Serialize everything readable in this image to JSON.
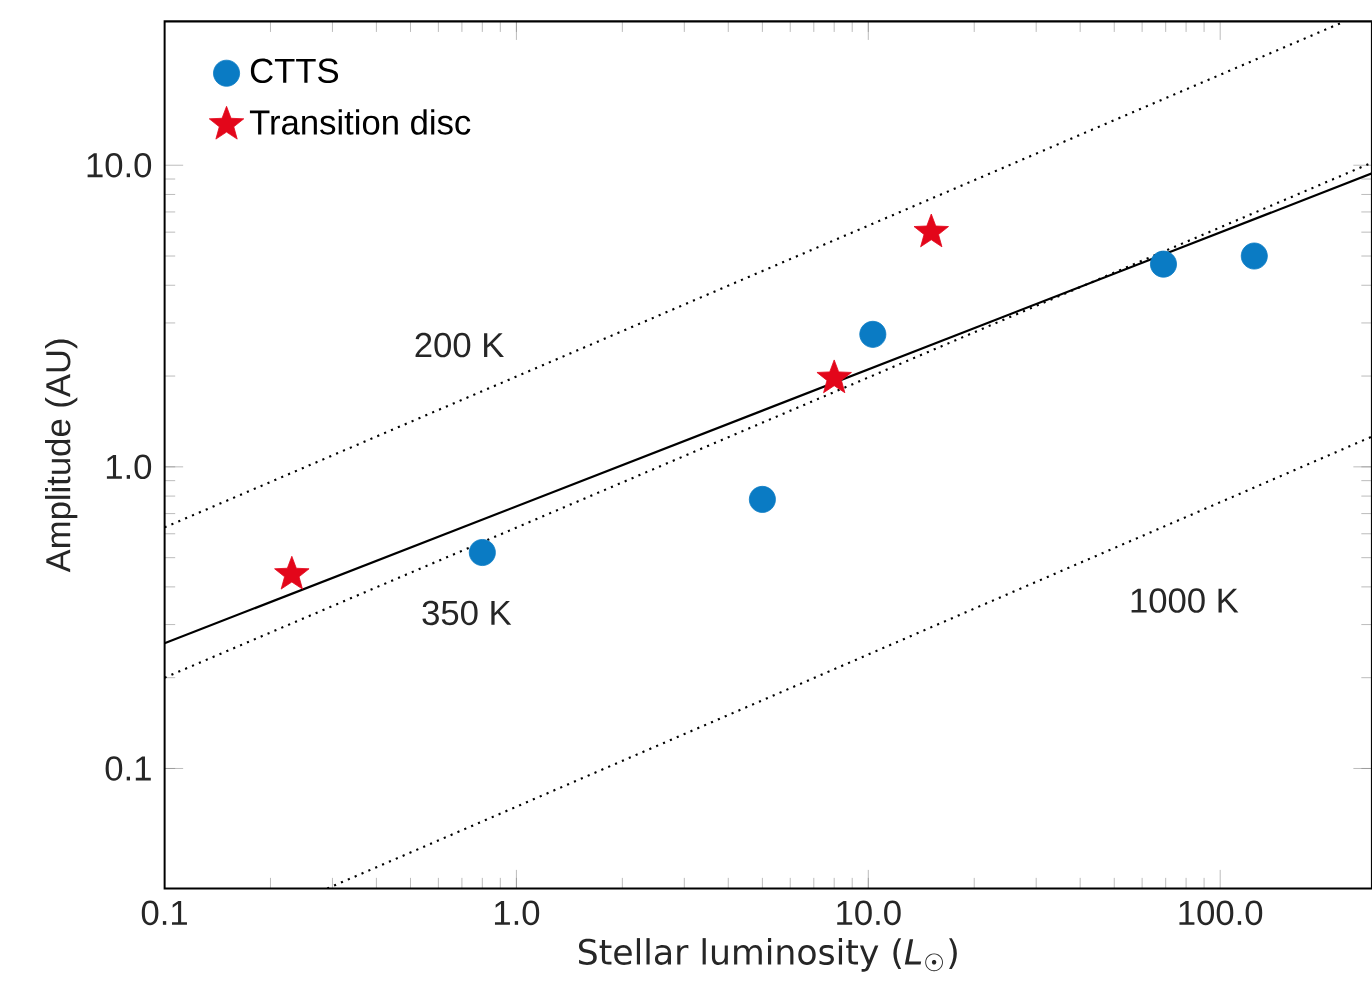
{
  "chart_data": {
    "type": "scatter",
    "xlabel": "Stellar luminosity (*L*$_{☉}$)",
    "ylabel": "Amplitude (AU)",
    "log": "xy",
    "xlim": [
      0.1,
      270
    ],
    "ylim": [
      0.04,
      30
    ],
    "xticks": [
      0.1,
      {
        "value": 1,
        "label": "1.0"
      },
      {
        "value": 10,
        "label": "10.0"
      },
      {
        "value": 100,
        "label": "100.0"
      }
    ],
    "yticks": [
      0.1,
      {
        "value": 1,
        "label": "1.0"
      },
      {
        "value": 10,
        "label": "10.0"
      }
    ],
    "legend": "top left",
    "series": [
      {
        "name": "CTTS",
        "marker": "circle",
        "color": "#0a7bc4",
        "x": [
          0.8,
          5.0,
          10.3,
          69,
          125
        ],
        "values": [
          0.52,
          0.78,
          2.75,
          4.7,
          5.0
        ]
      },
      {
        "name": "Transition disc",
        "marker": "star",
        "color": "#e3061a",
        "x": [
          0.23,
          8.0,
          15.1
        ],
        "values": [
          0.44,
          1.97,
          6.0
        ]
      },
      {
        "type": "line",
        "line_style": "solid",
        "color": "#000000",
        "x": [
          0.1,
          270
        ],
        "values": [
          0.26,
          9.4
        ]
      },
      {
        "name": "200 K",
        "type": "line",
        "line_style": "dotted",
        "color": "#000000",
        "x": [
          0.1,
          223
        ],
        "values": [
          0.63,
          29.8
        ]
      },
      {
        "name": "350 K",
        "type": "line",
        "line_style": "dotted",
        "color": "#000000",
        "x": [
          0.1,
          270
        ],
        "values": [
          0.2,
          10.2
        ]
      },
      {
        "name": "1000 K",
        "type": "line",
        "line_style": "dotted",
        "color": "#000000",
        "x": [
          0.29,
          270
        ],
        "values": [
          0.04,
          1.26
        ]
      }
    ]
  }
}
